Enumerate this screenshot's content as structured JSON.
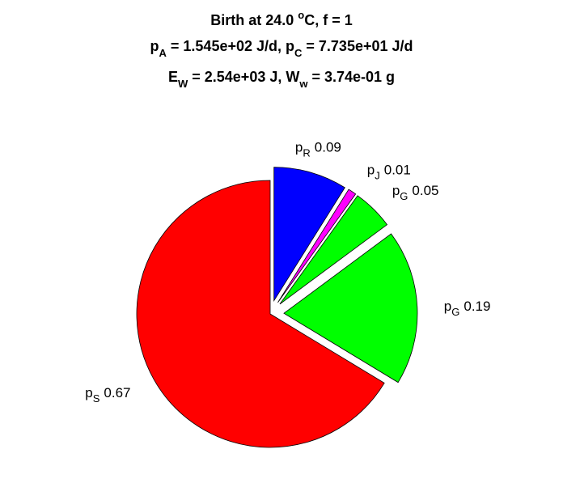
{
  "chart_data": {
    "type": "pie",
    "title": [
      [
        "Birth at 24.0 ",
        "o",
        "C, f = 1"
      ],
      [
        "p",
        "A",
        " = 1.545e+02 J/d, p",
        "C",
        " = 7.735e+01 J/d"
      ],
      [
        "E",
        "W",
        " = 2.54e+03 J, W",
        "w",
        " = 3.74e-01 g"
      ]
    ],
    "categories": [
      [
        "p",
        "R"
      ],
      [
        "p",
        "J"
      ],
      [
        "p",
        "G"
      ],
      [
        "p",
        "G"
      ],
      [
        "p",
        "S"
      ]
    ],
    "values": [
      0.09,
      0.01,
      0.05,
      0.19,
      0.67
    ],
    "colors": [
      "#0000ff",
      "#ff00ff",
      "#00ff00",
      "#00ff00",
      "#ff0000"
    ],
    "explode": [
      1,
      1,
      1,
      1,
      0
    ]
  }
}
